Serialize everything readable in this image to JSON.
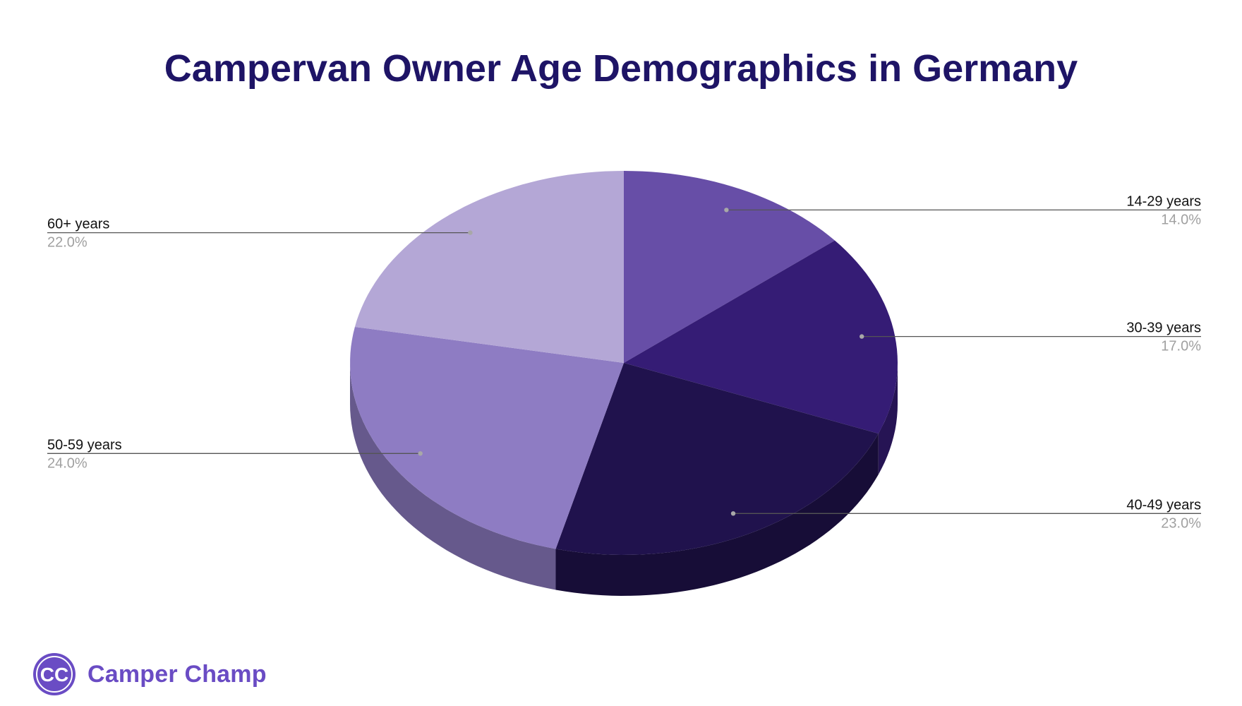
{
  "chart_data": {
    "type": "pie",
    "title": "Campervan Owner Age Demographics in Germany",
    "categories": [
      "14-29 years",
      "30-39 years",
      "40-49 years",
      "50-59 years",
      "60+ years"
    ],
    "values": [
      14.0,
      17.0,
      23.0,
      24.0,
      22.0
    ],
    "value_labels": [
      "14.0%",
      "17.0%",
      "23.0%",
      "24.0%",
      "22.0%"
    ],
    "colors": [
      "#674ea7",
      "#351c75",
      "#20124d",
      "#8e7cc3",
      "#b4a7d6"
    ],
    "three_d": true,
    "legend": "none"
  },
  "theme": {
    "title_color": "#1e1466",
    "label_color": "#111111",
    "pct_color": "#a0a0a0",
    "leader_color": "#555555",
    "brand_color": "#6a4cc4"
  },
  "brand": {
    "name": "Camper Champ",
    "logo_text": "CC"
  }
}
